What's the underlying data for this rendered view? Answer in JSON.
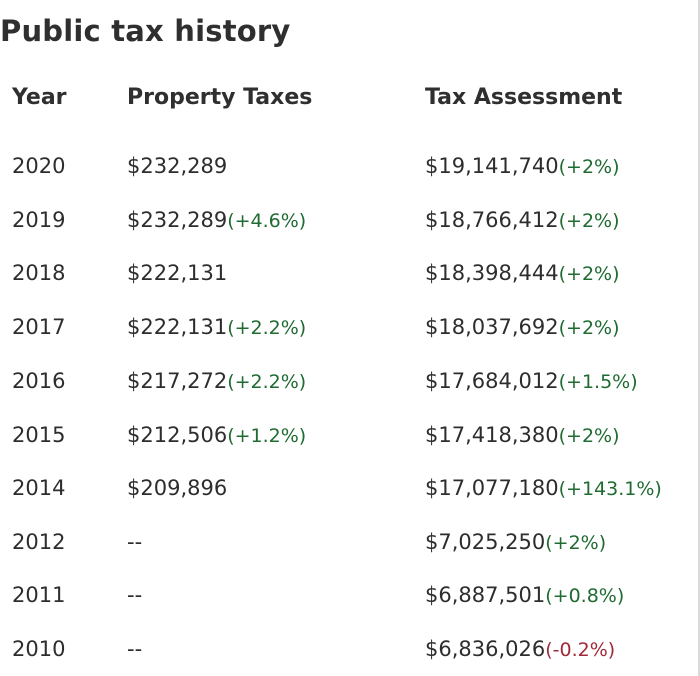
{
  "title": "Public tax history",
  "headers": {
    "year": "Year",
    "property_taxes": "Property Taxes",
    "tax_assessment": "Tax Assessment"
  },
  "colors": {
    "increase": "#1f6b32",
    "decrease": "#a12a3a"
  },
  "rows": [
    {
      "year": "2020",
      "tax": "$232,289",
      "tax_change": "",
      "assessment": "$19,141,740",
      "assessment_change": "(+2%)"
    },
    {
      "year": "2019",
      "tax": "$232,289",
      "tax_change": "(+4.6%)",
      "assessment": "$18,766,412",
      "assessment_change": "(+2%)"
    },
    {
      "year": "2018",
      "tax": "$222,131",
      "tax_change": "",
      "assessment": "$18,398,444",
      "assessment_change": "(+2%)"
    },
    {
      "year": "2017",
      "tax": "$222,131",
      "tax_change": "(+2.2%)",
      "assessment": "$18,037,692",
      "assessment_change": "(+2%)"
    },
    {
      "year": "2016",
      "tax": "$217,272",
      "tax_change": "(+2.2%)",
      "assessment": "$17,684,012",
      "assessment_change": "(+1.5%)"
    },
    {
      "year": "2015",
      "tax": "$212,506",
      "tax_change": "(+1.2%)",
      "assessment": "$17,418,380",
      "assessment_change": "(+2%)"
    },
    {
      "year": "2014",
      "tax": "$209,896",
      "tax_change": "",
      "assessment": "$17,077,180",
      "assessment_change": "(+143.1%)"
    },
    {
      "year": "2012",
      "tax": "--",
      "tax_change": "",
      "assessment": "$7,025,250",
      "assessment_change": "(+2%)"
    },
    {
      "year": "2011",
      "tax": "--",
      "tax_change": "",
      "assessment": "$6,887,501",
      "assessment_change": "(+0.8%)"
    },
    {
      "year": "2010",
      "tax": "--",
      "tax_change": "",
      "assessment": "$6,836,026",
      "assessment_change": "(-0.2%)"
    }
  ]
}
